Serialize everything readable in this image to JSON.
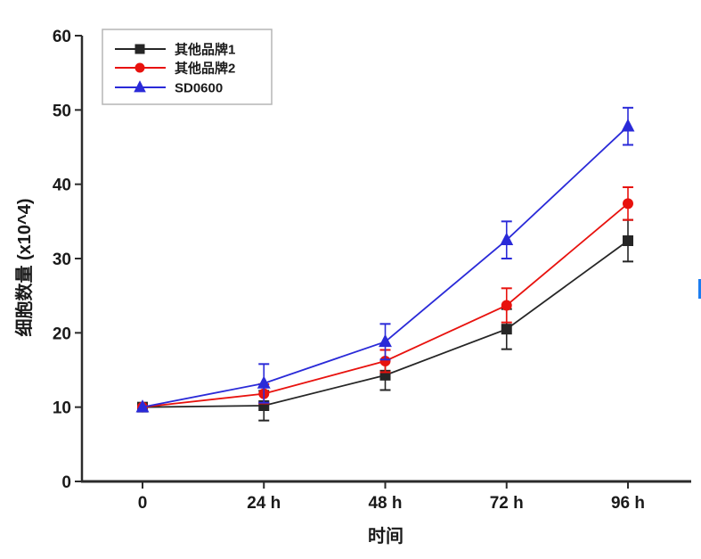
{
  "figure": {
    "background": "#ffffff"
  },
  "chart_data": {
    "type": "line",
    "title": "",
    "xlabel": "时间",
    "ylabel": "细胞数量 (x10^4)",
    "categories": [
      "0",
      "24 h",
      "48 h",
      "72 h",
      "96 h"
    ],
    "y_ticks": [
      "0",
      "10",
      "20",
      "30",
      "40",
      "50",
      "60"
    ],
    "ylim": [
      0,
      60
    ],
    "grid": false,
    "legend_position": "top-left",
    "error_bars": true,
    "series": [
      {
        "name": "其他品牌1",
        "color": "#262626",
        "marker": "square",
        "values": [
          10.0,
          10.2,
          14.3,
          20.5,
          32.4
        ],
        "errors": [
          0.4,
          2.0,
          2.0,
          2.7,
          2.8
        ]
      },
      {
        "name": "其他品牌2",
        "color": "#e8120e",
        "marker": "circle",
        "values": [
          10.0,
          11.8,
          16.2,
          23.7,
          37.4
        ],
        "errors": [
          0.4,
          1.3,
          1.5,
          2.3,
          2.2
        ]
      },
      {
        "name": "SD0600",
        "color": "#2a2ad8",
        "marker": "triangle",
        "values": [
          10.0,
          13.2,
          18.8,
          32.5,
          47.8
        ],
        "errors": [
          0.4,
          2.6,
          2.4,
          2.5,
          2.5
        ]
      }
    ]
  },
  "axis_style": {
    "axis_color": "#2b2b2b"
  },
  "artifact": {
    "color": "#1c7df0"
  }
}
